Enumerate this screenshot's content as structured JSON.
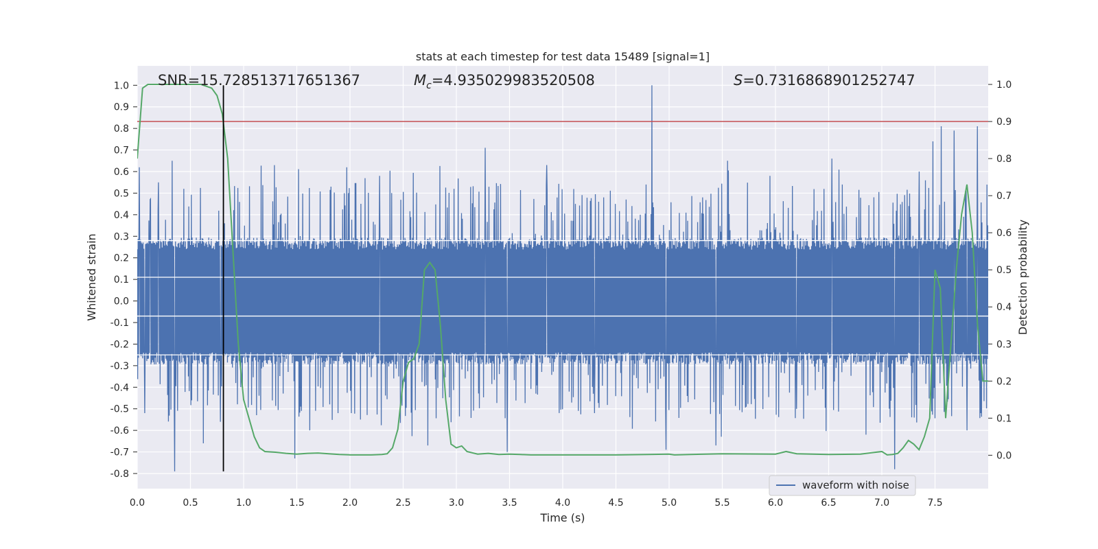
{
  "chart_data": {
    "type": "line",
    "title": "stats at each timestep for test data 15489 [signal=1]",
    "xlabel": "Time (s)",
    "ylabel_left": "Whitened strain",
    "ylabel_right": "Detection probability",
    "xlim": [
      0.0,
      8.0
    ],
    "ylim_left": [
      -0.87,
      1.09
    ],
    "ylim_right": [
      -0.09,
      1.05
    ],
    "x_ticks": [
      "0.0",
      "0.5",
      "1.0",
      "1.5",
      "2.0",
      "2.5",
      "3.0",
      "3.5",
      "4.0",
      "4.5",
      "5.0",
      "5.5",
      "6.0",
      "6.5",
      "7.0",
      "7.5"
    ],
    "x_tick_values": [
      0.0,
      0.5,
      1.0,
      1.5,
      2.0,
      2.5,
      3.0,
      3.5,
      4.0,
      4.5,
      5.0,
      5.5,
      6.0,
      6.5,
      7.0,
      7.5
    ],
    "y_left_ticks": [
      "1.0",
      "0.9",
      "0.8",
      "0.7",
      "0.6",
      "0.5",
      "0.4",
      "0.3",
      "0.2",
      "0.1",
      "0.0",
      "-0.1",
      "-0.2",
      "-0.3",
      "-0.4",
      "-0.5",
      "-0.6",
      "-0.7",
      "-0.8"
    ],
    "y_left_tick_values": [
      1.0,
      0.9,
      0.8,
      0.7,
      0.6,
      0.5,
      0.4,
      0.3,
      0.2,
      0.1,
      0.0,
      -0.1,
      -0.2,
      -0.3,
      -0.4,
      -0.5,
      -0.6,
      -0.7,
      -0.8
    ],
    "y_right_ticks": [
      "1.0",
      "0.9",
      "0.8",
      "0.7",
      "0.6",
      "0.5",
      "0.4",
      "0.3",
      "0.2",
      "0.1",
      "0.0"
    ],
    "y_right_tick_values": [
      1.0,
      0.9,
      0.8,
      0.7,
      0.6,
      0.5,
      0.4,
      0.3,
      0.2,
      0.1,
      0.0
    ],
    "annotations": {
      "snr": "SNR=15.728513717651367",
      "mc_prefix": "M",
      "mc_sub": "c",
      "mc_value": "=4.935029983520508",
      "s_prefix": "S",
      "s_value": "=0.7316868901252747"
    },
    "legend": {
      "label": "waveform with noise",
      "location": "lower-right"
    },
    "threshold": {
      "value": 0.9,
      "axis": "right",
      "color": "#c44e52"
    },
    "marker_time": {
      "value": 0.81,
      "color": "#000000"
    },
    "waveform": {
      "name": "waveform with noise",
      "color": "#4c72b0",
      "range": [
        0.0,
        8.0
      ],
      "samples": 2048,
      "core_amplitude": 0.28,
      "spikes": [
        {
          "t": 0.02,
          "v": 0.62
        },
        {
          "t": 0.07,
          "v": -0.52
        },
        {
          "t": 0.12,
          "v": 0.47
        },
        {
          "t": 0.33,
          "v": 0.65
        },
        {
          "t": 0.35,
          "v": -0.79
        },
        {
          "t": 0.62,
          "v": -0.66
        },
        {
          "t": 0.78,
          "v": -0.56
        },
        {
          "t": 0.82,
          "v": 0.36
        },
        {
          "t": 1.29,
          "v": 0.63
        },
        {
          "t": 1.48,
          "v": -0.73
        },
        {
          "t": 1.97,
          "v": 0.62
        },
        {
          "t": 2.28,
          "v": 0.58
        },
        {
          "t": 2.73,
          "v": -0.67
        },
        {
          "t": 3.27,
          "v": 0.71
        },
        {
          "t": 3.48,
          "v": -0.7
        },
        {
          "t": 4.84,
          "v": 1.0
        },
        {
          "t": 4.97,
          "v": -0.69
        },
        {
          "t": 5.44,
          "v": -0.67
        },
        {
          "t": 5.55,
          "v": 0.65
        },
        {
          "t": 6.53,
          "v": 0.66
        },
        {
          "t": 6.85,
          "v": -0.62
        },
        {
          "t": 7.12,
          "v": -0.78
        },
        {
          "t": 7.48,
          "v": 0.74
        },
        {
          "t": 7.56,
          "v": 0.81
        },
        {
          "t": 7.68,
          "v": 0.79
        },
        {
          "t": 7.8,
          "v": -0.6
        },
        {
          "t": 7.9,
          "v": 0.81
        },
        {
          "t": 7.93,
          "v": -0.52
        },
        {
          "t": 0.2,
          "v": 0.55
        },
        {
          "t": 1.62,
          "v": -0.6
        },
        {
          "t": 2.1,
          "v": -0.55
        },
        {
          "t": 3.85,
          "v": 0.63
        },
        {
          "t": 4.3,
          "v": -0.52
        },
        {
          "t": 5.95,
          "v": 0.58
        },
        {
          "t": 6.2,
          "v": -0.5
        },
        {
          "t": 7.35,
          "v": 0.6
        }
      ]
    },
    "probability": {
      "name": "detection probability",
      "color": "#55a868",
      "x": [
        0.0,
        0.05,
        0.1,
        0.2,
        0.3,
        0.4,
        0.5,
        0.6,
        0.7,
        0.75,
        0.8,
        0.85,
        0.9,
        0.95,
        1.0,
        1.05,
        1.1,
        1.15,
        1.2,
        1.3,
        1.4,
        1.5,
        1.6,
        1.7,
        1.8,
        1.9,
        2.0,
        2.1,
        2.2,
        2.3,
        2.35,
        2.4,
        2.45,
        2.5,
        2.55,
        2.6,
        2.65,
        2.7,
        2.75,
        2.8,
        2.85,
        2.9,
        2.95,
        3.0,
        3.05,
        3.1,
        3.2,
        3.3,
        3.4,
        3.5,
        3.6,
        3.7,
        4.0,
        4.5,
        4.8,
        5.0,
        5.05,
        5.2,
        5.5,
        6.0,
        6.1,
        6.2,
        6.5,
        6.8,
        7.0,
        7.05,
        7.1,
        7.15,
        7.2,
        7.25,
        7.3,
        7.35,
        7.4,
        7.45,
        7.5,
        7.55,
        7.6,
        7.65,
        7.7,
        7.75,
        7.8,
        7.85,
        7.9,
        7.95,
        8.0
      ],
      "y": [
        0.8,
        0.99,
        1.0,
        1.0,
        1.0,
        1.0,
        1.0,
        1.0,
        0.99,
        0.97,
        0.92,
        0.8,
        0.55,
        0.3,
        0.15,
        0.1,
        0.05,
        0.02,
        0.01,
        0.008,
        0.005,
        0.003,
        0.005,
        0.006,
        0.004,
        0.002,
        0.001,
        0.001,
        0.001,
        0.002,
        0.004,
        0.02,
        0.07,
        0.2,
        0.25,
        0.26,
        0.3,
        0.5,
        0.52,
        0.5,
        0.35,
        0.15,
        0.03,
        0.02,
        0.025,
        0.01,
        0.003,
        0.005,
        0.002,
        0.003,
        0.002,
        0.001,
        0.001,
        0.001,
        0.002,
        0.003,
        0.001,
        0.002,
        0.004,
        0.003,
        0.01,
        0.004,
        0.002,
        0.003,
        0.01,
        0.001,
        0.002,
        0.005,
        0.02,
        0.04,
        0.03,
        0.015,
        0.05,
        0.1,
        0.5,
        0.45,
        0.1,
        0.3,
        0.5,
        0.65,
        0.73,
        0.6,
        0.35,
        0.2,
        0.2
      ]
    }
  }
}
